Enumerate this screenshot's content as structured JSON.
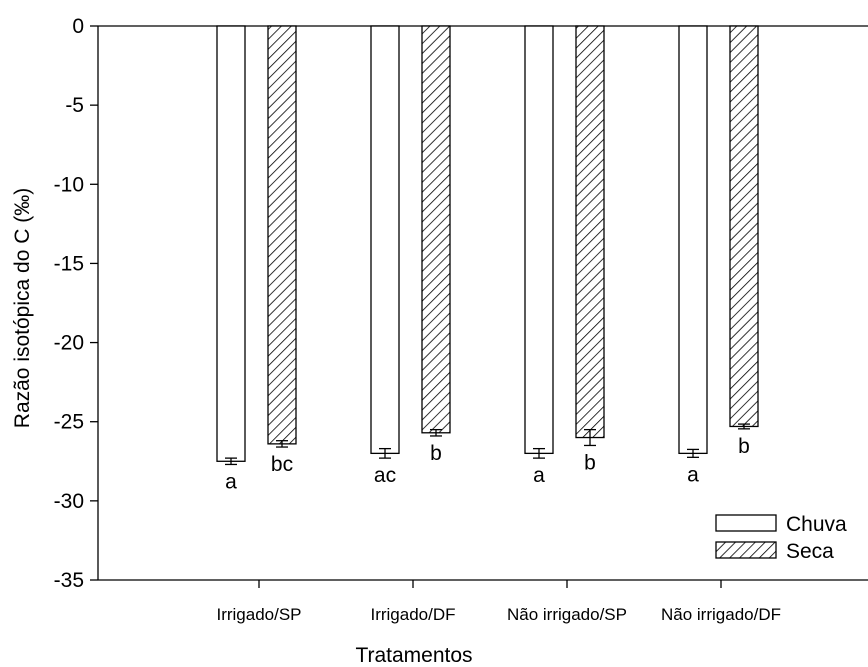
{
  "chart_data": {
    "type": "bar",
    "title": "",
    "xlabel": "Tratamentos",
    "ylabel": "Razão isotópica do C (‰)",
    "ylim": [
      -35,
      0
    ],
    "yticks": [
      0,
      -5,
      -10,
      -15,
      -20,
      -25,
      -30,
      -35
    ],
    "grid": false,
    "legend_position": "bottom-right",
    "categories": [
      "Irrigado/SP",
      "Irrigado/DF",
      "Não irrigado/SP",
      "Não irrigado/DF"
    ],
    "series": [
      {
        "name": "Chuva",
        "pattern": "none",
        "color": "#ffffff",
        "values": [
          -27.5,
          -27.0,
          -27.0,
          -27.0
        ],
        "errors": [
          0.2,
          0.3,
          0.3,
          0.25
        ],
        "letters": [
          "a",
          "ac",
          "a",
          "a"
        ]
      },
      {
        "name": "Seca",
        "pattern": "diagonal-hatch",
        "color": "#ffffff",
        "values": [
          -26.4,
          -25.7,
          -26.0,
          -25.3
        ],
        "errors": [
          0.2,
          0.2,
          0.5,
          0.15
        ],
        "letters": [
          "bc",
          "b",
          "b",
          "b"
        ]
      }
    ]
  }
}
